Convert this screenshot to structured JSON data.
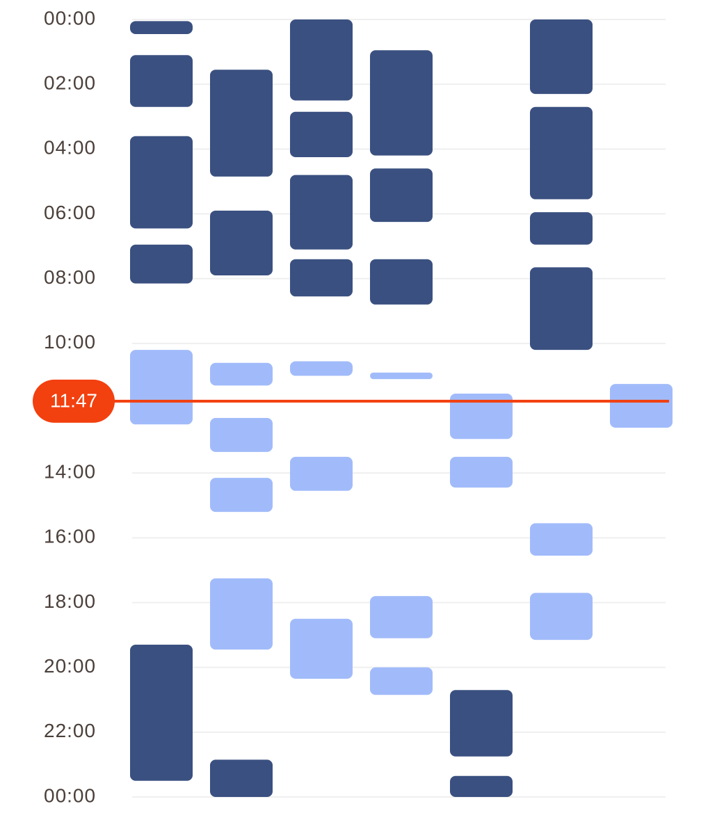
{
  "chart_data": {
    "type": "timeline",
    "ylim": [
      0,
      24
    ],
    "yticks": [
      {
        "value": 0,
        "label": "00:00"
      },
      {
        "value": 2,
        "label": "02:00"
      },
      {
        "value": 4,
        "label": "04:00"
      },
      {
        "value": 6,
        "label": "06:00"
      },
      {
        "value": 8,
        "label": "08:00"
      },
      {
        "value": 10,
        "label": "10:00"
      },
      {
        "value": 14,
        "label": "14:00"
      },
      {
        "value": 16,
        "label": "16:00"
      },
      {
        "value": 18,
        "label": "18:00"
      },
      {
        "value": 20,
        "label": "20:00"
      },
      {
        "value": 22,
        "label": "22:00"
      },
      {
        "value": 24,
        "label": "00:00"
      }
    ],
    "grid": true,
    "columns": 7,
    "now": {
      "value": 11.783,
      "label": "11:47",
      "color": "#f2400f"
    },
    "series": [
      {
        "color": "#3a5080",
        "items": [
          {
            "x": 0,
            "start": 0.05,
            "end": 0.45
          },
          {
            "x": 0,
            "start": 1.1,
            "end": 2.7
          },
          {
            "x": 0,
            "start": 3.6,
            "end": 6.45
          },
          {
            "x": 0,
            "start": 6.95,
            "end": 8.15
          },
          {
            "x": 0,
            "start": 19.3,
            "end": 23.5
          },
          {
            "x": 1,
            "start": 1.55,
            "end": 4.85
          },
          {
            "x": 1,
            "start": 5.9,
            "end": 7.9
          },
          {
            "x": 1,
            "start": 22.85,
            "end": 24
          },
          {
            "x": 2,
            "start": 0,
            "end": 2.5
          },
          {
            "x": 2,
            "start": 2.85,
            "end": 4.25
          },
          {
            "x": 2,
            "start": 4.8,
            "end": 7.1
          },
          {
            "x": 2,
            "start": 7.4,
            "end": 8.55
          },
          {
            "x": 3,
            "start": 0.95,
            "end": 4.2
          },
          {
            "x": 3,
            "start": 4.6,
            "end": 6.25
          },
          {
            "x": 3,
            "start": 7.4,
            "end": 8.8
          },
          {
            "x": 4,
            "start": 20.7,
            "end": 22.75
          },
          {
            "x": 4,
            "start": 23.35,
            "end": 24
          },
          {
            "x": 5,
            "start": 0,
            "end": 2.3
          },
          {
            "x": 5,
            "start": 2.7,
            "end": 5.55
          },
          {
            "x": 5,
            "start": 5.95,
            "end": 6.95
          },
          {
            "x": 5,
            "start": 7.65,
            "end": 10.2
          }
        ]
      },
      {
        "color": "#a1bbfa",
        "items": [
          {
            "x": 0,
            "start": 10.2,
            "end": 12.5
          },
          {
            "x": 1,
            "start": 10.6,
            "end": 11.3
          },
          {
            "x": 1,
            "start": 12.3,
            "end": 13.35
          },
          {
            "x": 1,
            "start": 14.15,
            "end": 15.2
          },
          {
            "x": 1,
            "start": 17.25,
            "end": 19.45
          },
          {
            "x": 2,
            "start": 10.55,
            "end": 11
          },
          {
            "x": 2,
            "start": 13.5,
            "end": 14.55
          },
          {
            "x": 2,
            "start": 18.5,
            "end": 20.35
          },
          {
            "x": 3,
            "start": 10.9,
            "end": 11.1
          },
          {
            "x": 3,
            "start": 17.8,
            "end": 19.1
          },
          {
            "x": 3,
            "start": 20,
            "end": 20.85
          },
          {
            "x": 4,
            "start": 11.55,
            "end": 12.95
          },
          {
            "x": 4,
            "start": 13.5,
            "end": 14.45
          },
          {
            "x": 5,
            "start": 15.55,
            "end": 16.55
          },
          {
            "x": 5,
            "start": 17.7,
            "end": 19.15
          },
          {
            "x": 6,
            "start": 11.25,
            "end": 12.6
          }
        ]
      }
    ]
  }
}
